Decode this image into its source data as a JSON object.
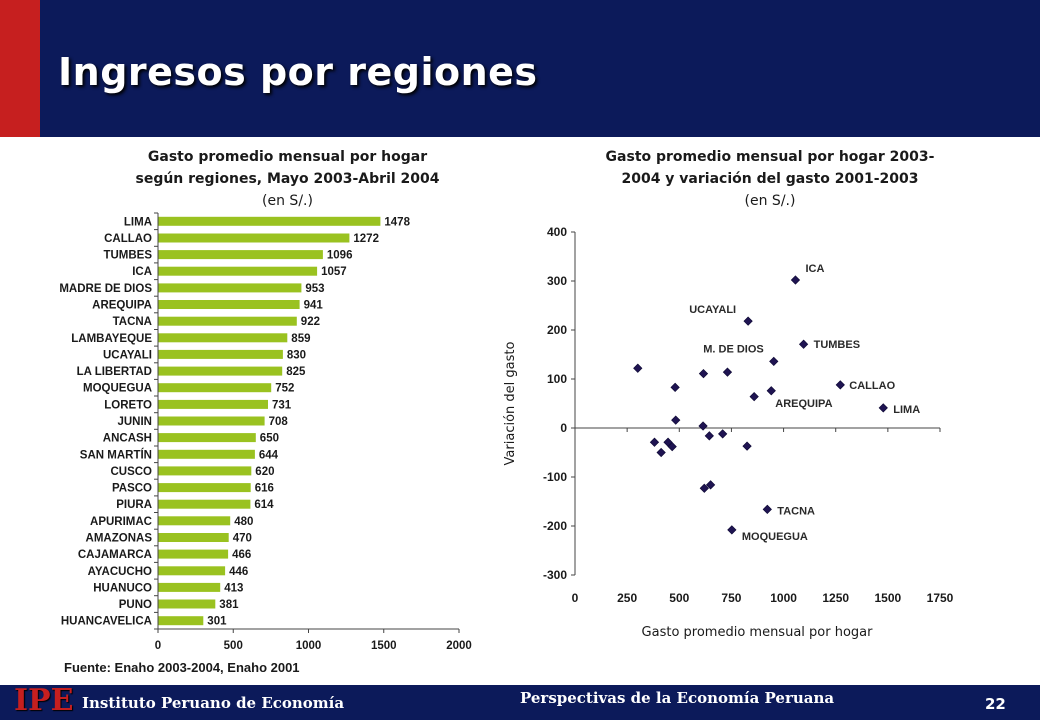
{
  "slide": {
    "title": "Ingresos por regiones",
    "source": "Fuente: Enaho 2003-2004, Enaho 2001",
    "footer_logo": "IPE",
    "footer_institute": "Instituto Peruano de Economía",
    "footer_center": "Perspectivas de la Economía Peruana",
    "page_number": "22",
    "colors": {
      "header": "#0c1a5a",
      "accent_red": "#c61f1f",
      "bar_green": "#9ac220",
      "marker": "#1f1452"
    }
  },
  "chart_data": [
    {
      "type": "bar",
      "orientation": "horizontal",
      "title_line1": "Gasto promedio mensual por hogar",
      "title_line2": "según regiones, Mayo 2003-Abril 2004",
      "unit": "(en S/.)",
      "categories": [
        "LIMA",
        "CALLAO",
        "TUMBES",
        "ICA",
        "MADRE DE DIOS",
        "AREQUIPA",
        "TACNA",
        "LAMBAYEQUE",
        "UCAYALI",
        "LA LIBERTAD",
        "MOQUEGUA",
        "LORETO",
        "JUNIN",
        "ANCASH",
        "SAN MARTÍN",
        "CUSCO",
        "PASCO",
        "PIURA",
        "APURIMAC",
        "AMAZONAS",
        "CAJAMARCA",
        "AYACUCHO",
        "HUANUCO",
        "PUNO",
        "HUANCAVELICA"
      ],
      "values": [
        1478,
        1272,
        1096,
        1057,
        953,
        941,
        922,
        859,
        830,
        825,
        752,
        731,
        708,
        650,
        644,
        620,
        616,
        614,
        480,
        470,
        466,
        446,
        413,
        381,
        301
      ],
      "xlim": [
        0,
        2000
      ],
      "xticks": [
        0,
        500,
        1000,
        1500,
        2000
      ],
      "grid": false
    },
    {
      "type": "scatter",
      "title_line1": "Gasto promedio mensual por hogar 2003-",
      "title_line2": "2004 y variación del gasto 2001-2003",
      "unit": "(en S/.)",
      "xlabel": "Gasto promedio mensual por hogar",
      "ylabel": "Variación del gasto",
      "xlim": [
        0,
        1750
      ],
      "ylim": [
        -300,
        400
      ],
      "xticks": [
        0,
        250,
        500,
        750,
        1000,
        1250,
        1500,
        1750
      ],
      "yticks": [
        -300,
        -200,
        -100,
        0,
        100,
        200,
        300,
        400
      ],
      "grid": false,
      "points": [
        {
          "x": 1057,
          "y": 302,
          "label": "ICA"
        },
        {
          "x": 830,
          "y": 218,
          "label": "UCAYALI"
        },
        {
          "x": 1096,
          "y": 171,
          "label": "TUMBES"
        },
        {
          "x": 953,
          "y": 136,
          "label": "M. DE DIOS"
        },
        {
          "x": 1272,
          "y": 88,
          "label": "CALLAO"
        },
        {
          "x": 941,
          "y": 76,
          "label": "AREQUIPA"
        },
        {
          "x": 1478,
          "y": 41,
          "label": "LIMA"
        },
        {
          "x": 922,
          "y": -166,
          "label": "TACNA"
        },
        {
          "x": 752,
          "y": -208,
          "label": "MOQUEGUA"
        },
        {
          "x": 301,
          "y": 122,
          "label": ""
        },
        {
          "x": 616,
          "y": 111,
          "label": ""
        },
        {
          "x": 731,
          "y": 114,
          "label": ""
        },
        {
          "x": 480,
          "y": 83,
          "label": ""
        },
        {
          "x": 859,
          "y": 64,
          "label": ""
        },
        {
          "x": 483,
          "y": 16,
          "label": ""
        },
        {
          "x": 614,
          "y": 4,
          "label": ""
        },
        {
          "x": 644,
          "y": -16,
          "label": ""
        },
        {
          "x": 708,
          "y": -12,
          "label": ""
        },
        {
          "x": 381,
          "y": -29,
          "label": ""
        },
        {
          "x": 446,
          "y": -29,
          "label": ""
        },
        {
          "x": 466,
          "y": -38,
          "label": ""
        },
        {
          "x": 413,
          "y": -50,
          "label": ""
        },
        {
          "x": 825,
          "y": -37,
          "label": ""
        },
        {
          "x": 650,
          "y": -116,
          "label": ""
        },
        {
          "x": 620,
          "y": -123,
          "label": ""
        }
      ]
    }
  ]
}
